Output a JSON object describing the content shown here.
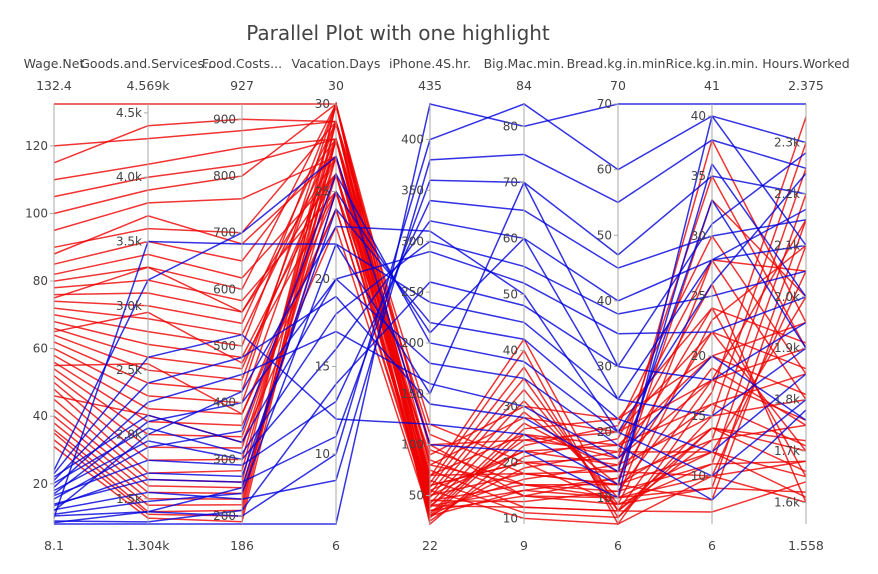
{
  "chart_data": {
    "type": "parallel-coordinates",
    "title": "Parallel Plot with one highlight",
    "colors": {
      "highlight": "#0000dd",
      "other": "#ee0000"
    },
    "dimensions": [
      {
        "name": "Wage.Net",
        "min": 8.1,
        "max": 132.4,
        "min_label": "8.1",
        "max_label": "132.4",
        "ticks": [
          {
            "v": 20,
            "t": "20"
          },
          {
            "v": 40,
            "t": "40"
          },
          {
            "v": 60,
            "t": "60"
          },
          {
            "v": 80,
            "t": "80"
          },
          {
            "v": 100,
            "t": "100"
          },
          {
            "v": 120,
            "t": "120"
          }
        ]
      },
      {
        "name": "Goods.and.Services...",
        "min": 1304,
        "max": 4569,
        "min_label": "1.304k",
        "max_label": "4.569k",
        "ticks": [
          {
            "v": 1500,
            "t": "1.5k"
          },
          {
            "v": 2000,
            "t": "2.0k"
          },
          {
            "v": 2500,
            "t": "2.5k"
          },
          {
            "v": 3000,
            "t": "3.0k"
          },
          {
            "v": 3500,
            "t": "3.5k"
          },
          {
            "v": 4000,
            "t": "4.0k"
          },
          {
            "v": 4500,
            "t": "4.5k"
          }
        ]
      },
      {
        "name": "Food.Costs...",
        "min": 186,
        "max": 927,
        "min_label": "186",
        "max_label": "927",
        "ticks": [
          {
            "v": 200,
            "t": "200"
          },
          {
            "v": 300,
            "t": "300"
          },
          {
            "v": 400,
            "t": "400"
          },
          {
            "v": 500,
            "t": "500"
          },
          {
            "v": 600,
            "t": "600"
          },
          {
            "v": 700,
            "t": "700"
          },
          {
            "v": 800,
            "t": "800"
          },
          {
            "v": 900,
            "t": "900"
          }
        ]
      },
      {
        "name": "Vacation.Days",
        "min": 6,
        "max": 30,
        "min_label": "6",
        "max_label": "30",
        "ticks": [
          {
            "v": 10,
            "t": "10"
          },
          {
            "v": 15,
            "t": "15"
          },
          {
            "v": 20,
            "t": "20"
          },
          {
            "v": 25,
            "t": "25"
          },
          {
            "v": 30,
            "t": "30"
          }
        ]
      },
      {
        "name": "iPhone.4S.hr.",
        "min": 22,
        "max": 435,
        "min_label": "22",
        "max_label": "435",
        "ticks": [
          {
            "v": 50,
            "t": "50"
          },
          {
            "v": 100,
            "t": "100"
          },
          {
            "v": 150,
            "t": "150"
          },
          {
            "v": 200,
            "t": "200"
          },
          {
            "v": 250,
            "t": "250"
          },
          {
            "v": 300,
            "t": "300"
          },
          {
            "v": 350,
            "t": "350"
          },
          {
            "v": 400,
            "t": "400"
          }
        ]
      },
      {
        "name": "Big.Mac.min.",
        "min": 9,
        "max": 84,
        "min_label": "9",
        "max_label": "84",
        "ticks": [
          {
            "v": 10,
            "t": "10"
          },
          {
            "v": 20,
            "t": "20"
          },
          {
            "v": 30,
            "t": "30"
          },
          {
            "v": 40,
            "t": "40"
          },
          {
            "v": 50,
            "t": "50"
          },
          {
            "v": 60,
            "t": "60"
          },
          {
            "v": 70,
            "t": "70"
          },
          {
            "v": 80,
            "t": "80"
          }
        ]
      },
      {
        "name": "Bread.kg.in.min.",
        "min": 6,
        "max": 70,
        "min_label": "6",
        "max_label": "70",
        "ticks": [
          {
            "v": 10,
            "t": "10"
          },
          {
            "v": 20,
            "t": "20"
          },
          {
            "v": 30,
            "t": "30"
          },
          {
            "v": 40,
            "t": "40"
          },
          {
            "v": 50,
            "t": "50"
          },
          {
            "v": 60,
            "t": "60"
          },
          {
            "v": 70,
            "t": "70"
          }
        ]
      },
      {
        "name": "Rice.kg.in.min.",
        "min": 6,
        "max": 41,
        "min_label": "6",
        "max_label": "41",
        "ticks": [
          {
            "v": 10,
            "t": "10"
          },
          {
            "v": 15,
            "t": "15"
          },
          {
            "v": 20,
            "t": "20"
          },
          {
            "v": 25,
            "t": "25"
          },
          {
            "v": 30,
            "t": "30"
          },
          {
            "v": 35,
            "t": "35"
          },
          {
            "v": 40,
            "t": "40"
          }
        ]
      },
      {
        "name": "Hours.Worked",
        "min": 1558,
        "max": 2375,
        "min_label": "1.558",
        "max_label": "2.375",
        "ticks": [
          {
            "v": 1600,
            "t": "1.6k"
          },
          {
            "v": 1700,
            "t": "1.7k"
          },
          {
            "v": 1800,
            "t": "1.8k"
          },
          {
            "v": 1900,
            "t": "1.9k"
          },
          {
            "v": 2000,
            "t": "2.0k"
          },
          {
            "v": 2100,
            "t": "2.1k"
          },
          {
            "v": 2200,
            "t": "2.2k"
          },
          {
            "v": 2300,
            "t": "2.3k"
          }
        ]
      }
    ],
    "highlight_records": [
      [
        8.1,
        1304,
        186,
        6,
        435,
        80,
        70,
        41,
        2375
      ],
      [
        10.5,
        1400,
        200,
        10,
        400,
        84,
        60,
        40,
        2300
      ],
      [
        12.3,
        1550,
        230,
        8.5,
        380,
        75,
        55,
        38,
        2250
      ],
      [
        14.0,
        1650,
        260,
        11,
        360,
        70,
        47,
        35,
        2200
      ],
      [
        16.5,
        1800,
        290,
        13,
        340,
        65,
        45,
        30,
        2150
      ],
      [
        18.0,
        1950,
        300,
        16,
        320,
        60,
        40,
        28,
        2100
      ],
      [
        20.2,
        2050,
        310,
        18,
        300,
        55,
        38,
        25,
        2050
      ],
      [
        22.0,
        2150,
        330,
        20,
        290,
        52,
        35,
        22,
        2000
      ],
      [
        9.0,
        1320,
        210,
        14,
        260,
        48,
        30,
        18,
        1950
      ],
      [
        11.0,
        1480,
        240,
        22,
        240,
        45,
        25,
        15,
        1900
      ],
      [
        13.5,
        1700,
        270,
        24,
        220,
        42,
        22,
        12,
        1850
      ],
      [
        15.5,
        1900,
        350,
        26,
        200,
        38,
        20,
        10,
        1800
      ],
      [
        17.0,
        2100,
        400,
        20,
        180,
        35,
        18,
        8,
        1780
      ],
      [
        19.0,
        2250,
        450,
        17,
        160,
        30,
        16,
        20,
        1760
      ],
      [
        21.0,
        2400,
        480,
        19,
        140,
        28,
        14,
        33,
        1900
      ],
      [
        23.0,
        2600,
        520,
        12,
        120,
        25,
        12,
        36,
        2000
      ],
      [
        24.0,
        3200,
        700,
        27,
        100,
        22,
        10,
        40,
        2100
      ],
      [
        10.0,
        3500,
        680,
        22,
        150,
        70,
        30,
        31,
        2280
      ],
      [
        8.5,
        1400,
        250,
        25,
        210,
        60,
        25,
        28,
        2170
      ],
      [
        12.0,
        2000,
        420,
        23,
        310,
        50,
        20,
        26,
        2240
      ]
    ],
    "other_records": [
      [
        132.4,
        4569,
        927,
        30,
        30,
        15,
        10,
        10,
        1600
      ],
      [
        120.0,
        4300,
        880,
        29,
        50,
        18,
        12,
        12,
        1650
      ],
      [
        110.0,
        4100,
        850,
        28,
        40,
        12,
        8,
        14,
        1700
      ],
      [
        100.0,
        3900,
        800,
        30,
        60,
        20,
        9,
        9,
        1620
      ],
      [
        95.0,
        3800,
        760,
        27,
        45,
        16,
        11,
        11,
        1680
      ],
      [
        90.0,
        3600,
        700,
        29,
        35,
        14,
        13,
        13,
        1750
      ],
      [
        85.0,
        3500,
        650,
        28,
        55,
        22,
        15,
        15,
        1800
      ],
      [
        82.0,
        3400,
        620,
        26,
        70,
        25,
        18,
        16,
        1850
      ],
      [
        80.0,
        3300,
        600,
        30,
        80,
        28,
        20,
        18,
        1900
      ],
      [
        78.0,
        3200,
        580,
        25,
        90,
        30,
        22,
        20,
        1950
      ],
      [
        76.0,
        3100,
        560,
        27,
        100,
        24,
        17,
        12,
        2000
      ],
      [
        74.0,
        3000,
        540,
        29,
        120,
        20,
        14,
        10,
        2050
      ],
      [
        72.0,
        2900,
        520,
        28,
        110,
        18,
        12,
        8,
        2100
      ],
      [
        70.0,
        2800,
        500,
        30,
        95,
        16,
        10,
        9,
        2150
      ],
      [
        68.0,
        2700,
        480,
        26,
        85,
        14,
        9,
        11,
        2200
      ],
      [
        66.0,
        2600,
        460,
        27,
        75,
        12,
        8,
        13,
        2250
      ],
      [
        64.0,
        2500,
        440,
        29,
        65,
        11,
        7,
        15,
        2300
      ],
      [
        62.0,
        2400,
        420,
        30,
        55,
        10,
        6,
        17,
        2350
      ],
      [
        60.0,
        2300,
        400,
        28,
        45,
        13,
        11,
        19,
        1750
      ],
      [
        58.0,
        2200,
        380,
        25,
        40,
        15,
        13,
        22,
        1700
      ],
      [
        56.0,
        2100,
        360,
        24,
        35,
        17,
        15,
        24,
        1650
      ],
      [
        54.0,
        2000,
        340,
        26,
        30,
        19,
        17,
        26,
        1600
      ],
      [
        52.0,
        1900,
        320,
        27,
        25,
        21,
        19,
        28,
        1800
      ],
      [
        50.0,
        1800,
        300,
        28,
        22,
        23,
        21,
        30,
        1850
      ],
      [
        48.0,
        1700,
        280,
        29,
        28,
        25,
        16,
        35,
        1900
      ],
      [
        45.0,
        1650,
        260,
        30,
        32,
        27,
        14,
        38,
        1950
      ],
      [
        42.0,
        1600,
        250,
        26,
        38,
        29,
        12,
        33,
        2000
      ],
      [
        40.0,
        1550,
        240,
        25,
        42,
        31,
        10,
        28,
        2050
      ],
      [
        38.0,
        1500,
        230,
        27,
        48,
        33,
        9,
        23,
        2100
      ],
      [
        36.0,
        1450,
        220,
        28,
        52,
        35,
        8,
        18,
        2150
      ],
      [
        35.0,
        1400,
        210,
        30,
        58,
        37,
        7,
        14,
        1720
      ],
      [
        33.0,
        1380,
        200,
        29,
        62,
        40,
        6,
        10,
        1680
      ],
      [
        31.0,
        1350,
        190,
        28,
        68,
        42,
        8,
        7,
        1640
      ],
      [
        115.0,
        4400,
        900,
        29,
        100,
        14,
        10,
        12,
        1610
      ],
      [
        105.0,
        4000,
        820,
        28,
        80,
        16,
        12,
        14,
        1660
      ],
      [
        88.0,
        3700,
        680,
        27,
        70,
        18,
        14,
        16,
        1710
      ],
      [
        75.0,
        3300,
        560,
        26,
        60,
        20,
        16,
        18,
        1760
      ],
      [
        65.0,
        2950,
        470,
        25,
        50,
        22,
        18,
        20,
        1810
      ],
      [
        55.0,
        2550,
        380,
        24,
        40,
        24,
        20,
        22,
        1860
      ],
      [
        46.0,
        2150,
        330,
        23,
        30,
        26,
        22,
        24,
        1910
      ]
    ]
  }
}
